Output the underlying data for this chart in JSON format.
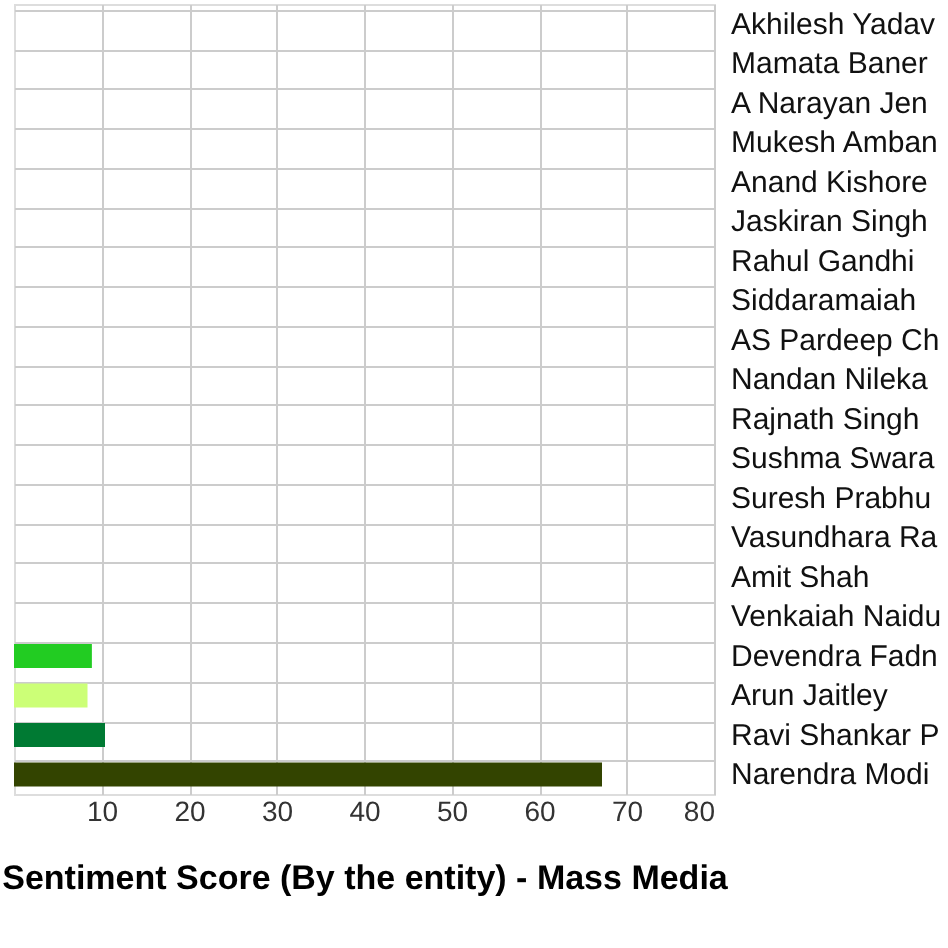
{
  "chart_data": {
    "type": "bar",
    "orientation": "horizontal",
    "xlabel": "Sentiment Score (By the entity) - Mass Media",
    "categories": [
      "Akhilesh Yadav",
      "Mamata Baner",
      "A Narayan Jen",
      "Mukesh Amban",
      "Anand Kishore",
      "Jaskiran Singh",
      "Rahul Gandhi",
      "Siddaramaiah",
      "AS Pardeep Ch",
      "Nandan Nileka",
      "Rajnath Singh",
      "Sushma Swara",
      "Suresh Prabhu",
      "Vasundhara Ra",
      "Amit Shah",
      "Venkaiah Naidu",
      "Devendra Fadn",
      "Arun Jaitley",
      "Ravi Shankar P",
      "Narendra Modi"
    ],
    "values": [
      null,
      null,
      null,
      null,
      null,
      null,
      null,
      null,
      null,
      null,
      null,
      null,
      null,
      null,
      null,
      null,
      8.9,
      8.4,
      10.4,
      67.2
    ],
    "colors": [
      null,
      null,
      null,
      null,
      null,
      null,
      null,
      null,
      null,
      null,
      null,
      null,
      null,
      null,
      null,
      null,
      "#22cc22",
      "#ccff77",
      "#007a33",
      "#334400"
    ],
    "xlim": [
      0,
      80
    ],
    "xticks": [
      10,
      20,
      30,
      40,
      50,
      60,
      70,
      80
    ],
    "grid": true
  }
}
